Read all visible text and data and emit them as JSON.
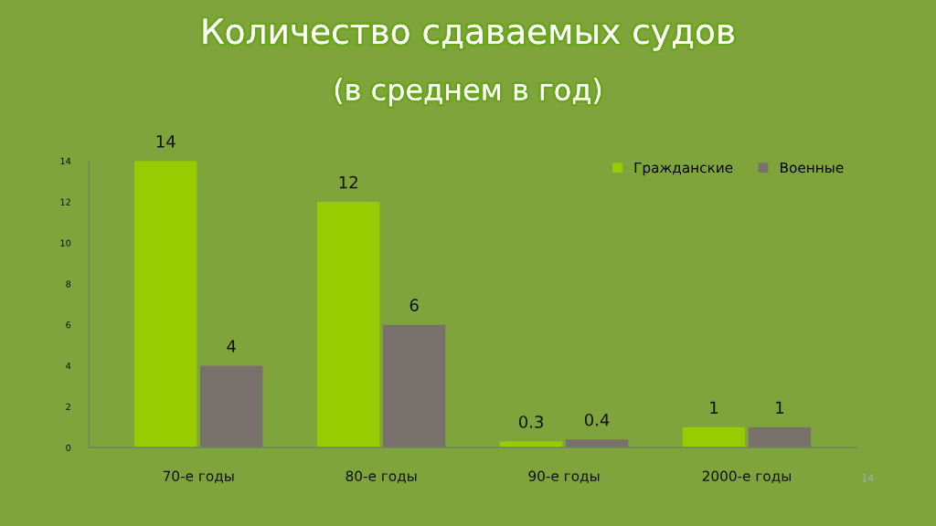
{
  "chart_data": {
    "type": "bar",
    "title": "Количество сдаваемых судов",
    "subtitle": "(в среднем в год)",
    "categories": [
      "70-е годы",
      "80-е годы",
      "90-е годы",
      "2000-е годы"
    ],
    "series": [
      {
        "name": "Гражданские",
        "color": "#99cc00",
        "values": [
          14,
          12,
          0.3,
          1
        ]
      },
      {
        "name": "Военные",
        "color": "#78706b",
        "values": [
          4,
          6,
          0.4,
          1
        ]
      }
    ],
    "ylim": [
      0,
      14
    ],
    "yticks": [
      0,
      2,
      4,
      6,
      8,
      10,
      12,
      14
    ],
    "grid": false,
    "legend": "top right",
    "data_labels": true,
    "annotations": [
      "14"
    ]
  }
}
